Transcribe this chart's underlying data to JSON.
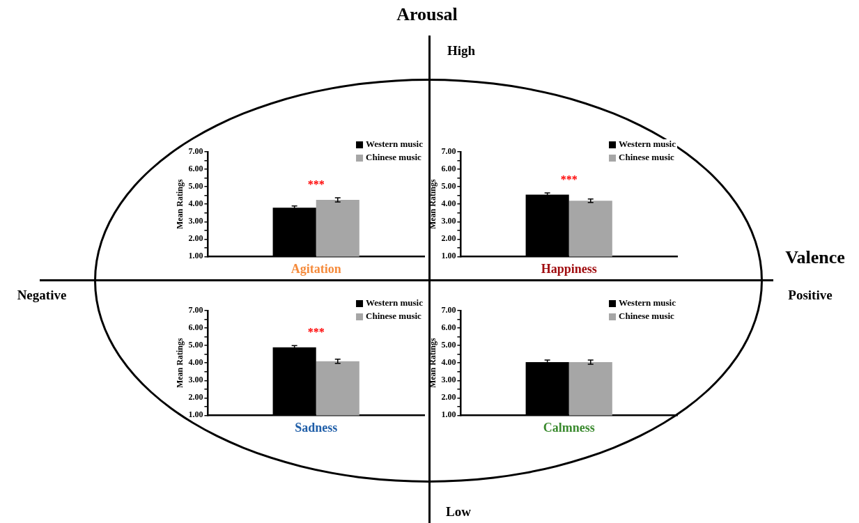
{
  "chart_data": [
    {
      "type": "other",
      "annotations": [
        "Arousal",
        "High",
        "Valence",
        "Negative",
        "Positive",
        "Low"
      ]
    },
    {
      "type": "bar",
      "xlabel": "Agitation",
      "ylabel": "Mean Ratings",
      "categories": [
        null
      ],
      "series": [
        {
          "name": "Western music",
          "color": "#000000",
          "values": [
            3.8
          ],
          "errors": [
            0.1
          ]
        },
        {
          "name": "Chinese music",
          "color": "#a6a6a6",
          "values": [
            4.25
          ],
          "errors": [
            0.12
          ]
        }
      ],
      "ylim": [
        1,
        7
      ],
      "yticks": [
        {
          "value": 1,
          "label": "1.00"
        },
        {
          "value": 1.5,
          "label": null
        },
        {
          "value": 2,
          "label": "2.00"
        },
        {
          "value": 2.5,
          "label": null
        },
        {
          "value": 3,
          "label": "3.00"
        },
        {
          "value": 3.5,
          "label": null
        },
        {
          "value": 4,
          "label": "4.00"
        },
        {
          "value": 4.5,
          "label": null
        },
        {
          "value": 5,
          "label": "5.00"
        },
        {
          "value": 5.5,
          "label": null
        },
        {
          "value": 6,
          "label": "6.00"
        },
        {
          "value": 6.5,
          "label": null
        },
        {
          "value": 7,
          "label": "7.00"
        }
      ],
      "annotations": [
        "***"
      ],
      "legend": "top right",
      "tick_labels": "y"
    },
    {
      "type": "bar",
      "xlabel": "Happiness",
      "ylabel": "Mean Ratings",
      "categories": [
        null
      ],
      "series": [
        {
          "name": "Western music",
          "color": "#000000",
          "values": [
            4.55
          ],
          "errors": [
            0.1
          ]
        },
        {
          "name": "Chinese music",
          "color": "#a6a6a6",
          "values": [
            4.2
          ],
          "errors": [
            0.1
          ]
        }
      ],
      "ylim": [
        1,
        7
      ],
      "yticks": [
        {
          "value": 1,
          "label": "1.00"
        },
        {
          "value": 1.5,
          "label": null
        },
        {
          "value": 2,
          "label": "2.00"
        },
        {
          "value": 2.5,
          "label": null
        },
        {
          "value": 3,
          "label": "3.00"
        },
        {
          "value": 3.5,
          "label": null
        },
        {
          "value": 4,
          "label": "4.00"
        },
        {
          "value": 4.5,
          "label": null
        },
        {
          "value": 5,
          "label": "5.00"
        },
        {
          "value": 5.5,
          "label": null
        },
        {
          "value": 6,
          "label": "6.00"
        },
        {
          "value": 6.5,
          "label": null
        },
        {
          "value": 7,
          "label": "7.00"
        }
      ],
      "annotations": [
        "***"
      ],
      "legend": "top right",
      "tick_labels": "y"
    },
    {
      "type": "bar",
      "xlabel": "Sadness",
      "ylabel": "Mean Ratings",
      "categories": [
        null
      ],
      "series": [
        {
          "name": "Western music",
          "color": "#000000",
          "values": [
            4.9
          ],
          "errors": [
            0.1
          ]
        },
        {
          "name": "Chinese music",
          "color": "#a6a6a6",
          "values": [
            4.1
          ],
          "errors": [
            0.12
          ]
        }
      ],
      "ylim": [
        1,
        7
      ],
      "yticks": [
        {
          "value": 1,
          "label": "1.00"
        },
        {
          "value": 1.5,
          "label": null
        },
        {
          "value": 2,
          "label": "2.00"
        },
        {
          "value": 2.5,
          "label": null
        },
        {
          "value": 3,
          "label": "3.00"
        },
        {
          "value": 3.5,
          "label": null
        },
        {
          "value": 4,
          "label": "4.00"
        },
        {
          "value": 4.5,
          "label": null
        },
        {
          "value": 5,
          "label": "5.00"
        },
        {
          "value": 5.5,
          "label": null
        },
        {
          "value": 6,
          "label": "6.00"
        },
        {
          "value": 6.5,
          "label": null
        },
        {
          "value": 7,
          "label": "7.00"
        }
      ],
      "annotations": [
        "***"
      ],
      "legend": "top right",
      "tick_labels": "y"
    },
    {
      "type": "bar",
      "xlabel": "Calmness",
      "ylabel": "Mean Ratings",
      "categories": [
        null
      ],
      "series": [
        {
          "name": "Western music",
          "color": "#000000",
          "values": [
            4.05
          ],
          "errors": [
            0.12
          ]
        },
        {
          "name": "Chinese music",
          "color": "#a6a6a6",
          "values": [
            4.05
          ],
          "errors": [
            0.12
          ]
        }
      ],
      "ylim": [
        1,
        7
      ],
      "yticks": [
        {
          "value": 1,
          "label": "1.00"
        },
        {
          "value": 1.5,
          "label": null
        },
        {
          "value": 2,
          "label": "2.00"
        },
        {
          "value": 2.5,
          "label": null
        },
        {
          "value": 3,
          "label": "3.00"
        },
        {
          "value": 3.5,
          "label": null
        },
        {
          "value": 4,
          "label": "4.00"
        },
        {
          "value": 4.5,
          "label": null
        },
        {
          "value": 5,
          "label": "5.00"
        },
        {
          "value": 5.5,
          "label": null
        },
        {
          "value": 6,
          "label": "6.00"
        },
        {
          "value": 6.5,
          "label": null
        },
        {
          "value": 7,
          "label": "7.00"
        }
      ],
      "legend": "top right",
      "tick_labels": "y"
    }
  ]
}
